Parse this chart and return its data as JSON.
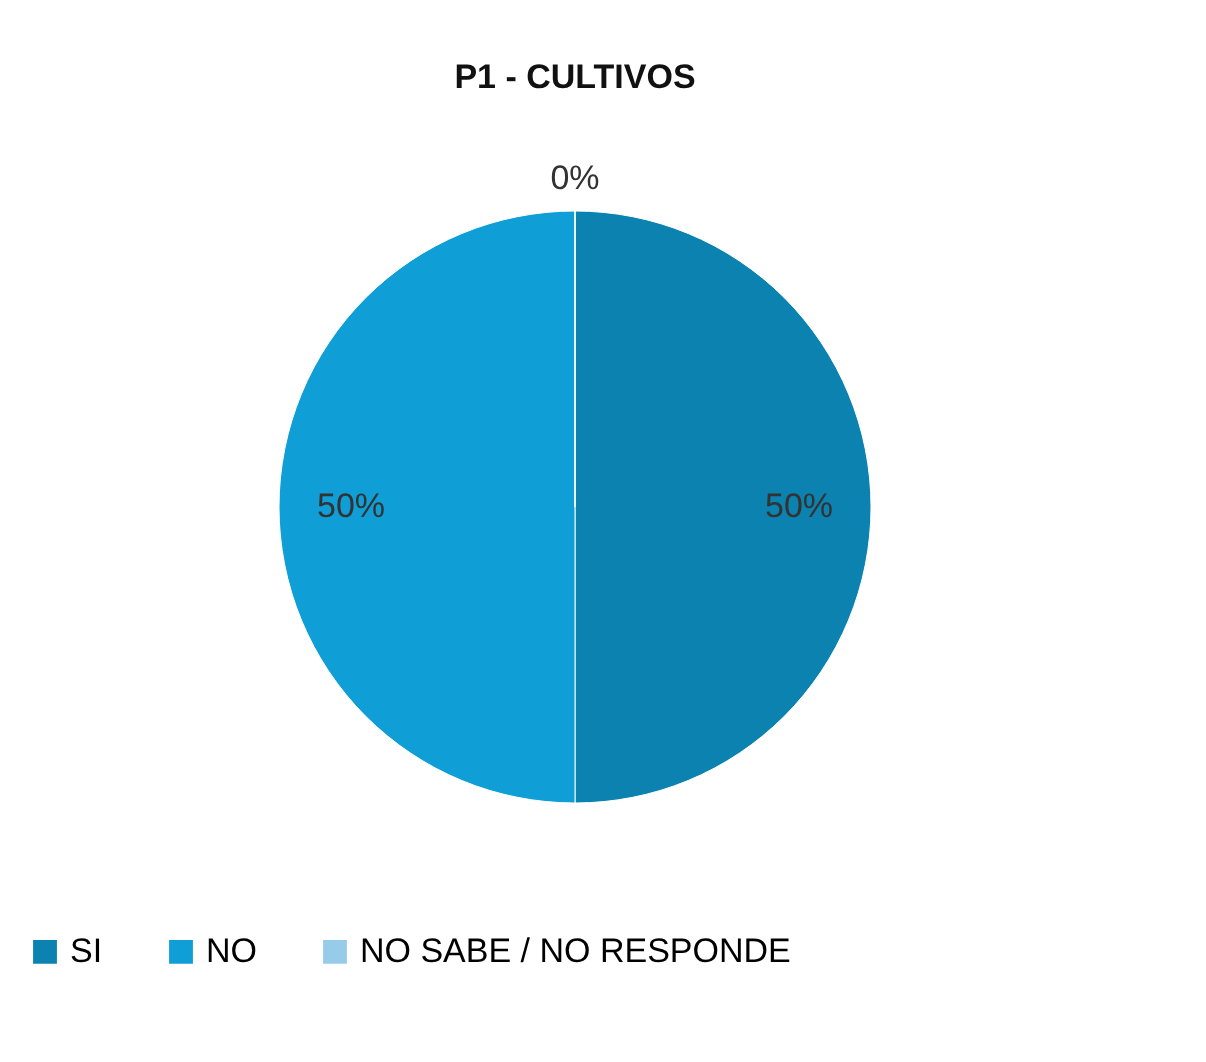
{
  "chart_data": {
    "type": "pie",
    "title": "P1 - CULTIVOS",
    "categories": [
      "SI",
      "NO",
      "NO SABE / NO RESPONDE"
    ],
    "values": [
      50,
      50,
      0
    ],
    "colors": [
      "#0b82b0",
      "#109ed6",
      "#96cbea"
    ],
    "value_labels": [
      "50%",
      "50%",
      "0%"
    ],
    "legend": "bottom"
  }
}
